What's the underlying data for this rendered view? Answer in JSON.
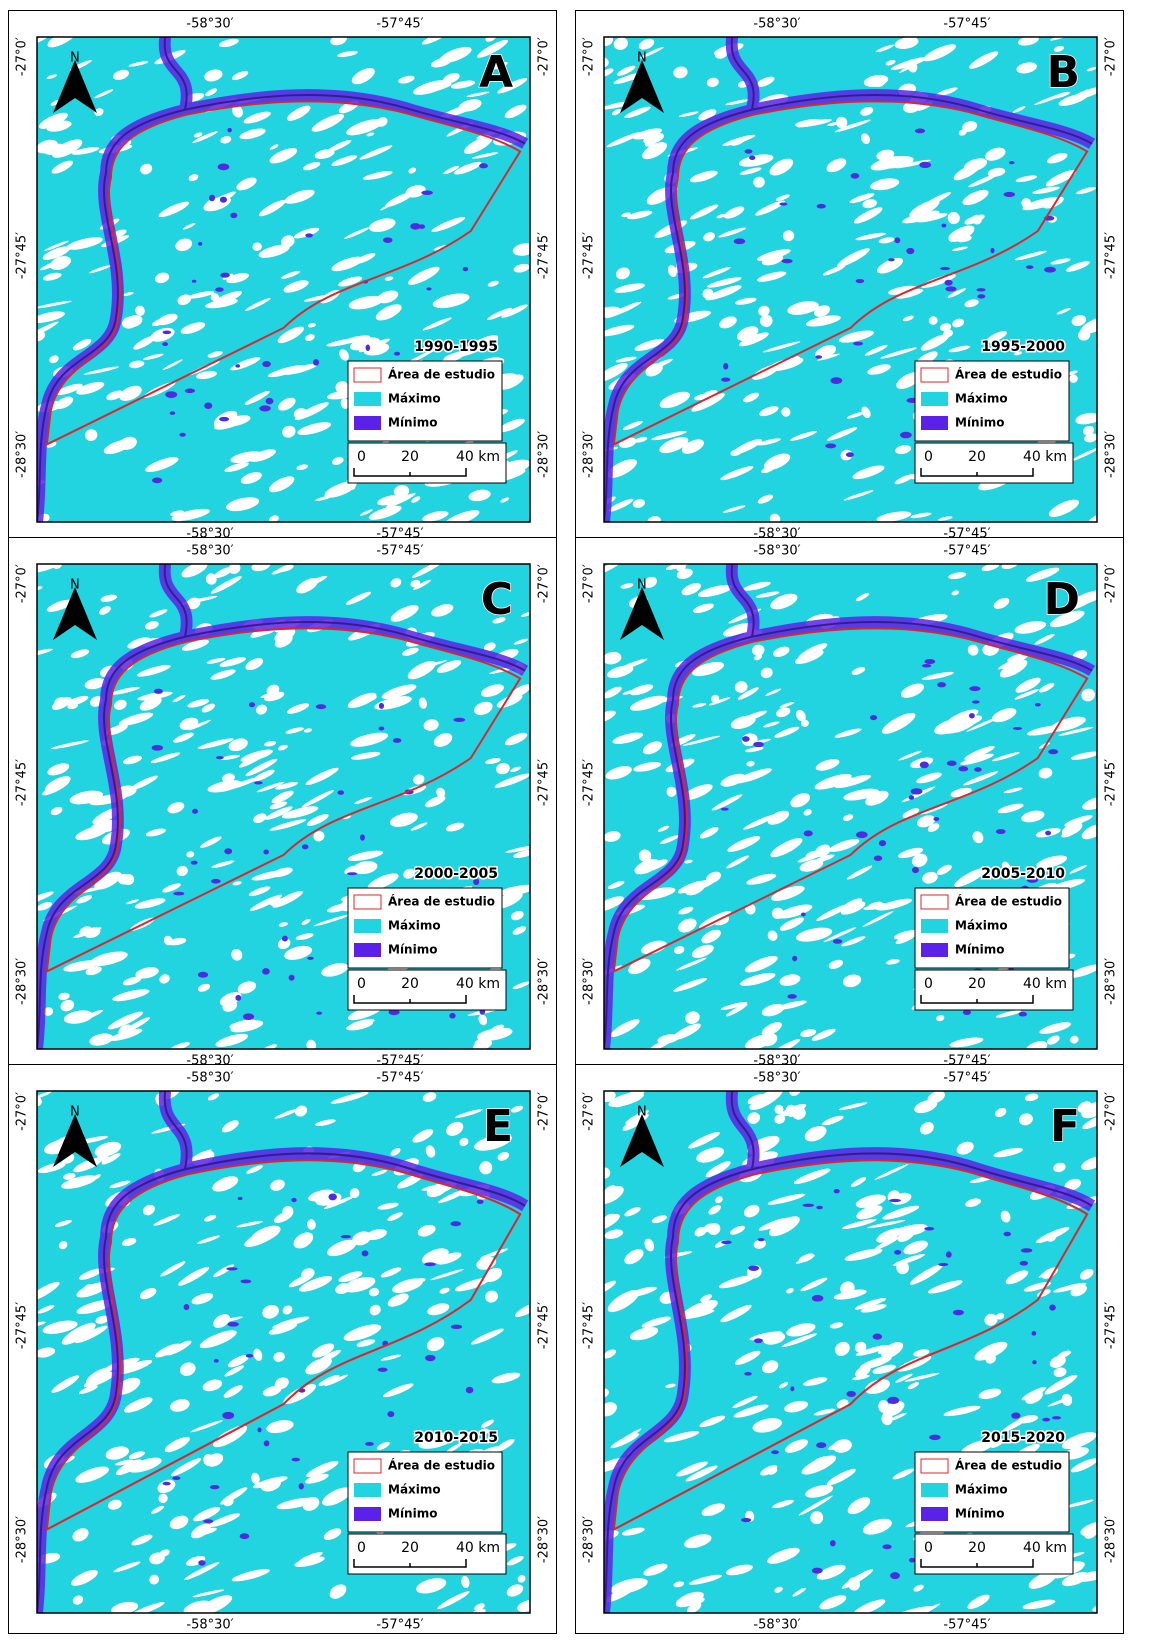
{
  "panels": [
    {
      "letter": "A",
      "period": "1990-1995"
    },
    {
      "letter": "B",
      "period": "1995-2000"
    },
    {
      "letter": "C",
      "period": "2000-2005"
    },
    {
      "letter": "D",
      "period": "2005-2010"
    },
    {
      "letter": "E",
      "period": "2010-2015"
    },
    {
      "letter": "F",
      "period": "2015-2020"
    }
  ],
  "north_label": "N",
  "coordinates": {
    "x_labels": [
      "-58°30′",
      "-57°45′"
    ],
    "y_labels": [
      "-27°0′",
      "-27°45′",
      "-28°30′"
    ]
  },
  "legend": {
    "items": [
      "Área de estudio",
      "Máximo",
      "Mínimo"
    ]
  },
  "scale_bar": {
    "ticks": [
      "0",
      "20",
      "40 km"
    ]
  }
}
